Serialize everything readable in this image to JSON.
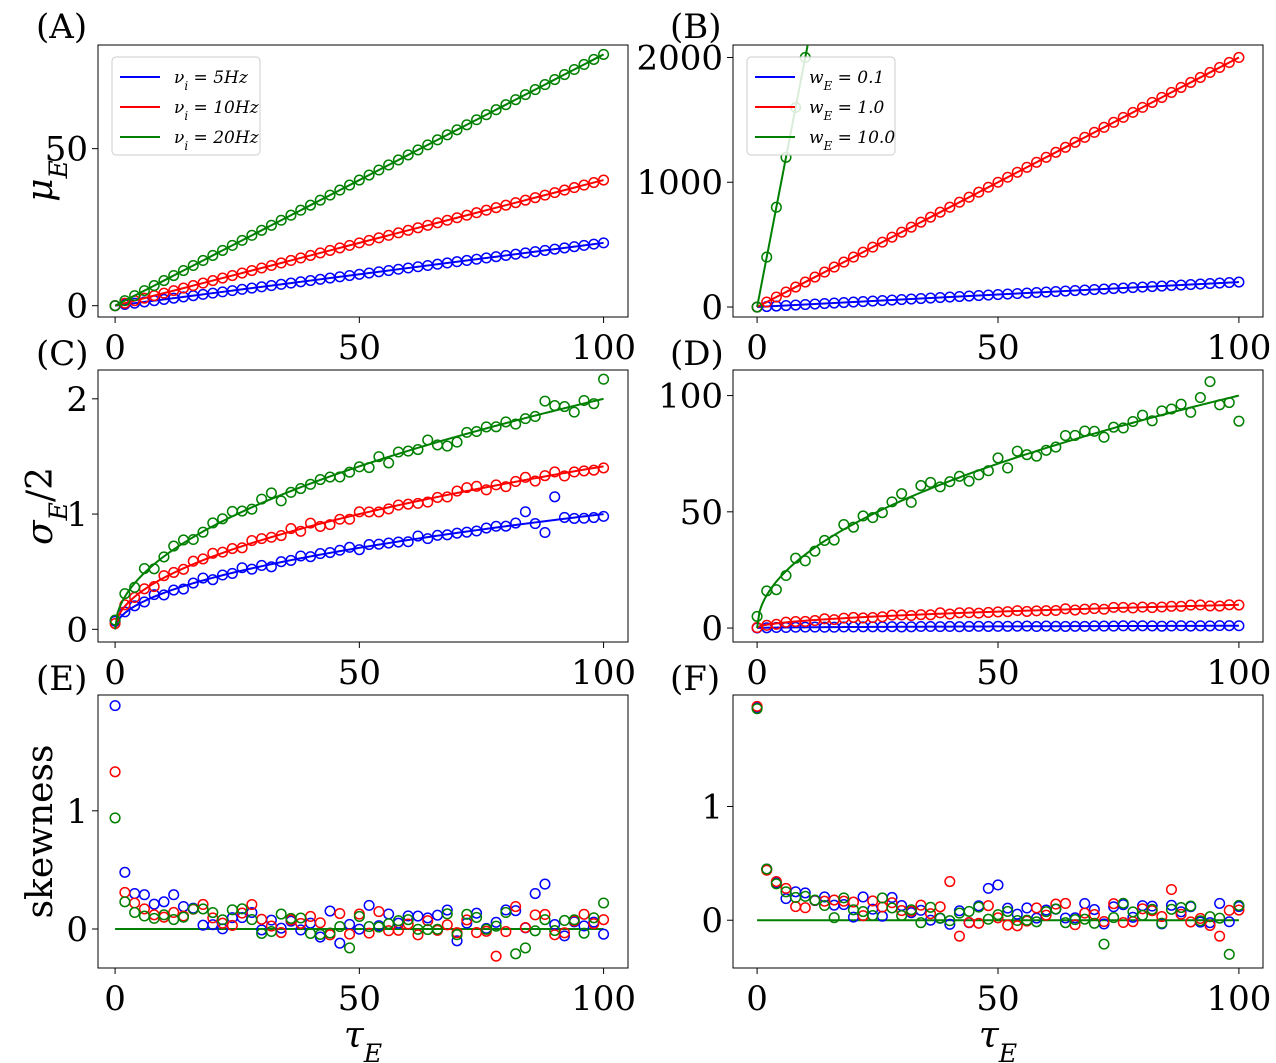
{
  "chart_data": [
    {
      "panel": "(A)",
      "type": "line",
      "ylabel": "μ_E",
      "xlabel": "",
      "xlim": [
        -3.5,
        105
      ],
      "ylim": [
        -3.6,
        83
      ],
      "xticks": [
        0,
        50,
        100
      ],
      "yticks": [
        0,
        50
      ],
      "legend": {
        "placement": "top-left",
        "entries": [
          "ν_i = 5Hz",
          "ν_i = 10Hz",
          "ν_i = 20Hz"
        ]
      },
      "series": [
        {
          "name": "ν_i = 5Hz",
          "color": "#0000ff",
          "model": "linear",
          "slope": 0.2,
          "markers": "linear"
        },
        {
          "name": "ν_i = 10Hz",
          "color": "#ff0000",
          "model": "linear",
          "slope": 0.4,
          "markers": "linear"
        },
        {
          "name": "ν_i = 20Hz",
          "color": "#008000",
          "model": "linear",
          "slope": 0.8,
          "markers": "linear"
        }
      ]
    },
    {
      "panel": "(B)",
      "type": "line",
      "ylabel": "",
      "xlabel": "",
      "xlim": [
        -5,
        105
      ],
      "ylim": [
        -80,
        2100
      ],
      "xticks": [
        0,
        50,
        100
      ],
      "yticks": [
        0,
        1000,
        2000
      ],
      "legend": {
        "placement": "top-left",
        "entries": [
          "w_E = 0.1",
          "w_E = 1.0",
          "w_E = 10.0"
        ]
      },
      "series": [
        {
          "name": "w_E = 0.1",
          "color": "#0000ff",
          "model": "linear",
          "slope": 2,
          "markers": "linear"
        },
        {
          "name": "w_E = 1.0",
          "color": "#ff0000",
          "model": "linear",
          "slope": 20,
          "markers": "linear"
        },
        {
          "name": "w_E = 10.0",
          "color": "#008000",
          "model": "linear",
          "slope": 200,
          "markers": "linear"
        }
      ]
    },
    {
      "panel": "(C)",
      "type": "line",
      "ylabel": "σ_E/2",
      "xlabel": "",
      "xlim": [
        -3.5,
        105
      ],
      "ylim": [
        -0.11,
        2.25
      ],
      "xticks": [
        0,
        50,
        100
      ],
      "yticks": [
        0,
        1,
        2
      ],
      "series": [
        {
          "name": "ν_i = 5Hz",
          "color": "#0000ff",
          "model": "sqrt",
          "coef": 0.1,
          "marker_noise": 0.025,
          "marker_overrides": {
            "0": 0.07,
            "84": 1.02,
            "88": 0.84,
            "90": 1.15
          }
        },
        {
          "name": "ν_i = 10Hz",
          "color": "#ff0000",
          "model": "sqrt",
          "coef": 0.1414,
          "marker_noise": 0.03,
          "marker_overrides": {
            "0": 0.05
          }
        },
        {
          "name": "ν_i = 20Hz",
          "color": "#008000",
          "model": "sqrt",
          "coef": 0.2,
          "marker_noise": 0.06,
          "marker_overrides": {
            "0": 0.08,
            "88": 1.98,
            "100": 2.17
          }
        }
      ]
    },
    {
      "panel": "(D)",
      "type": "line",
      "ylabel": "",
      "xlabel": "",
      "xlim": [
        -5,
        105
      ],
      "ylim": [
        -6,
        111
      ],
      "xticks": [
        0,
        50,
        100
      ],
      "yticks": [
        0,
        50,
        100
      ],
      "series": [
        {
          "name": "w_E = 0.1",
          "color": "#0000ff",
          "model": "sqrt",
          "coef": 0.1,
          "marker_noise": 0.1
        },
        {
          "name": "w_E = 1.0",
          "color": "#ff0000",
          "model": "sqrt",
          "coef": 1.0,
          "marker_noise": 0.4
        },
        {
          "name": "w_E = 10.0",
          "color": "#008000",
          "model": "sqrt",
          "coef": 10.0,
          "marker_noise": 3.5,
          "marker_overrides": {
            "0": 5,
            "94": 106,
            "98": 97,
            "100": 89
          }
        }
      ]
    },
    {
      "panel": "(E)",
      "type": "scatter",
      "ylabel": "skewness",
      "xlabel": "τ_E",
      "xlim": [
        -3.5,
        105
      ],
      "ylim": [
        -0.33,
        1.98
      ],
      "xticks": [
        0,
        50,
        100
      ],
      "yticks": [
        0,
        1
      ],
      "reference_line": {
        "y": 0,
        "color": "#008000"
      },
      "series": [
        {
          "name": "ν_i = 5Hz",
          "color": "#0000ff",
          "markers_head": [
            [
              0,
              1.89
            ],
            [
              2,
              0.48
            ],
            [
              4,
              0.3
            ],
            [
              6,
              0.29
            ],
            [
              8,
              0.21
            ],
            [
              10,
              0.23
            ],
            [
              12,
              0.29
            ],
            [
              14,
              0.19
            ]
          ],
          "marker_noise": 0.12,
          "marker_overrides": {
            "46": -0.12,
            "52": 0.2,
            "70": -0.1,
            "88": 0.38,
            "86": 0.3
          }
        },
        {
          "name": "ν_i = 10Hz",
          "color": "#ff0000",
          "markers_head": [
            [
              0,
              1.33
            ],
            [
              2,
              0.31
            ],
            [
              4,
              0.22
            ],
            [
              6,
              0.17
            ],
            [
              8,
              0.12
            ],
            [
              10,
              0.1
            ],
            [
              12,
              0.14
            ],
            [
              14,
              0.11
            ]
          ],
          "marker_noise": 0.1,
          "marker_overrides": {
            "78": -0.23,
            "82": 0.19
          }
        },
        {
          "name": "ν_i = 20Hz",
          "color": "#008000",
          "markers_head": [
            [
              0,
              0.94
            ],
            [
              2,
              0.23
            ],
            [
              4,
              0.14
            ],
            [
              6,
              0.11
            ],
            [
              8,
              0.09
            ],
            [
              10,
              0.12
            ],
            [
              12,
              0.08
            ],
            [
              14,
              0.1
            ]
          ],
          "marker_noise": 0.1,
          "marker_overrides": {
            "48": -0.16,
            "82": -0.21,
            "84": -0.16,
            "100": 0.22
          }
        }
      ]
    },
    {
      "panel": "(F)",
      "type": "scatter",
      "ylabel": "",
      "xlabel": "τ_E",
      "xlim": [
        -5,
        105
      ],
      "ylim": [
        -0.42,
        1.98
      ],
      "xticks": [
        0,
        50,
        100
      ],
      "yticks": [
        0,
        1
      ],
      "reference_line": {
        "y": 0,
        "color": "#008000"
      },
      "series": [
        {
          "name": "w_E = 0.1",
          "color": "#0000ff",
          "markers_head": [
            [
              0,
              1.87
            ],
            [
              2,
              0.45
            ],
            [
              4,
              0.33
            ],
            [
              6,
              0.19
            ],
            [
              8,
              0.25
            ],
            [
              10,
              0.24
            ]
          ],
          "marker_noise": 0.1,
          "marker_overrides": {
            "48": 0.28,
            "50": 0.31,
            "100": 0.12
          }
        },
        {
          "name": "w_E = 1.0",
          "color": "#ff0000",
          "markers_head": [
            [
              0,
              1.88
            ],
            [
              2,
              0.44
            ],
            [
              4,
              0.34
            ],
            [
              6,
              0.28
            ],
            [
              8,
              0.12
            ],
            [
              10,
              0.11
            ]
          ],
          "marker_noise": 0.1,
          "marker_overrides": {
            "40": 0.34,
            "42": -0.14,
            "86": 0.27,
            "96": -0.14
          }
        },
        {
          "name": "w_E = 10.0",
          "color": "#008000",
          "markers_head": [
            [
              0,
              1.86
            ],
            [
              2,
              0.45
            ],
            [
              4,
              0.32
            ],
            [
              6,
              0.25
            ],
            [
              8,
              0.2
            ],
            [
              10,
              0.21
            ]
          ],
          "marker_noise": 0.1,
          "marker_overrides": {
            "72": -0.21,
            "98": -0.3,
            "100": 0.13
          }
        }
      ]
    }
  ]
}
